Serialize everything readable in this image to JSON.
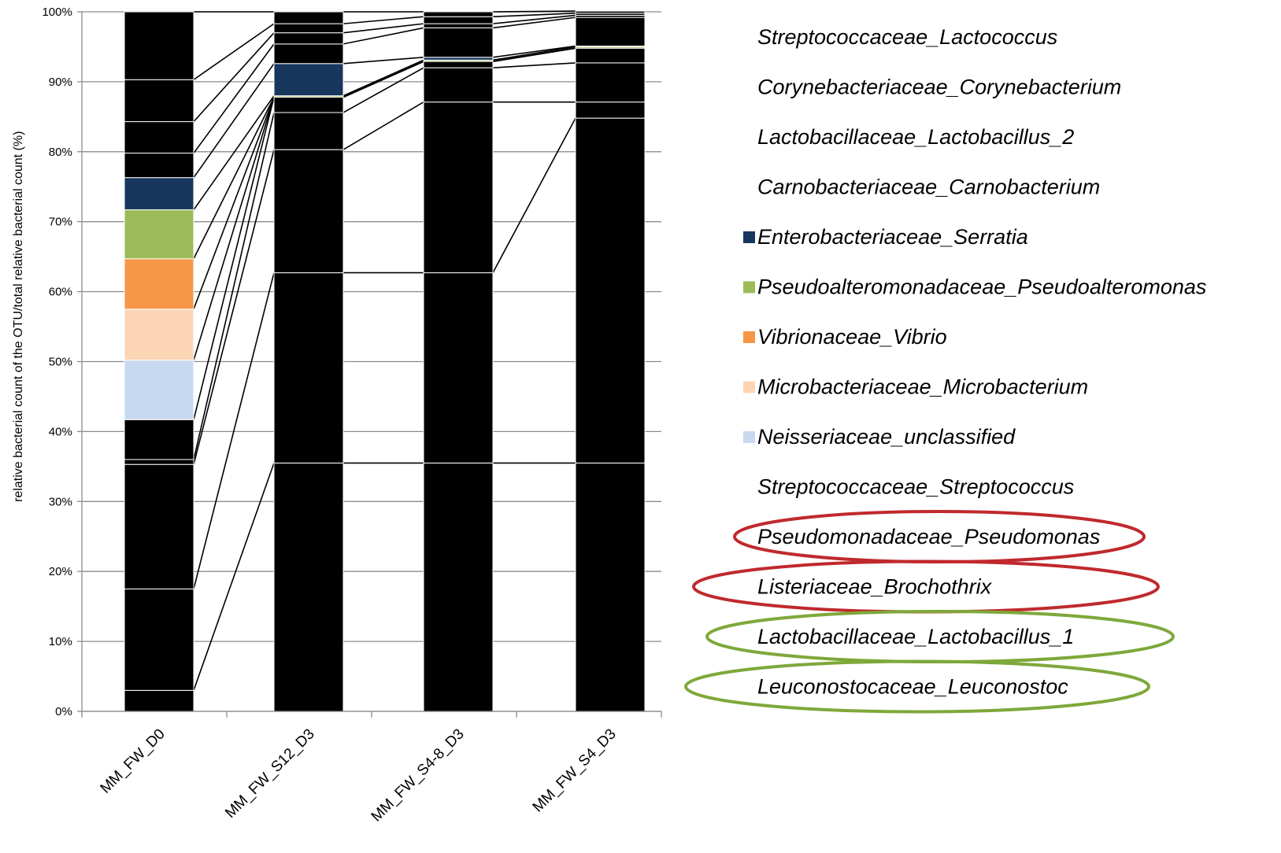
{
  "chart_data": {
    "type": "bar",
    "stacked": true,
    "percent": true,
    "ylabel": "relative bacterial count of the OTU/total relative bacterial count (%) ",
    "yticks": [
      "0% ",
      "10% ",
      "20% ",
      "30% ",
      "40% ",
      "50% ",
      "60% ",
      "70% ",
      "80% ",
      "90% ",
      "100% "
    ],
    "ylim": [
      0,
      100
    ],
    "grid": true,
    "legend_position": "right",
    "categories": [
      "MM_FW_D0 ",
      "MM_FW_S12_D3 ",
      "MM_FW_S4-8_D3 ",
      "MM_FW_S4_D3 "
    ],
    "series": [
      {
        "name": "Leuconostocaceae_Leuconostoc",
        "color": "#000000",
        "values": [
          3.0,
          35.5,
          35.5,
          35.5
        ]
      },
      {
        "name": "Lactobacillaceae_Lactobacillus_1",
        "color": "#000000",
        "values": [
          14.5,
          27.2,
          27.2,
          49.3
        ]
      },
      {
        "name": "Listeriaceae_Brochothrix",
        "color": "#000000",
        "values": [
          17.8,
          17.6,
          24.4,
          2.3
        ]
      },
      {
        "name": "Pseudomonadaceae_Pseudomonas",
        "color": "#000000",
        "values": [
          0.7,
          5.3,
          4.9,
          5.6
        ]
      },
      {
        "name": "Streptococcaceae_Streptococcus",
        "color": "#000000",
        "values": [
          5.7,
          2.2,
          0.9,
          2.1
        ]
      },
      {
        "name": "Neisseriaceae_unclassified",
        "color": "#c6d9f1",
        "values": [
          8.5,
          0.0,
          0.0,
          0.0
        ]
      },
      {
        "name": "Microbacteriaceae_Microbacterium",
        "color": "#fcd5b5",
        "values": [
          7.3,
          0.0,
          0.0,
          0.0
        ]
      },
      {
        "name": "Vibrionaceae_Vibrio",
        "color": "#f79646",
        "values": [
          7.2,
          0.0,
          0.0,
          0.0
        ]
      },
      {
        "name": "Pseudoalteromonadaceae_Pseudoalteromonas",
        "color": "#9bbb59",
        "values": [
          7.0,
          0.2,
          0.2,
          0.2
        ]
      },
      {
        "name": "Enterobacteriaceae_Serratia",
        "color": "#17375e",
        "values": [
          4.6,
          4.6,
          0.4,
          0.1
        ]
      },
      {
        "name": "Carnobacteriaceae_Carnobacterium",
        "color": "#000000",
        "values": [
          3.5,
          2.8,
          4.2,
          4.1
        ]
      },
      {
        "name": "Lactobacillaceae_Lactobacillus_2",
        "color": "#000000",
        "values": [
          4.5,
          1.6,
          0.6,
          0.3
        ]
      },
      {
        "name": "Corynebacteriaceae_Corynebacterium",
        "color": "#000000",
        "values": [
          6.0,
          1.3,
          1.0,
          0.3
        ]
      },
      {
        "name": "Streptococcaceae_Lactococcus",
        "color": "#000000",
        "values": [
          9.7,
          1.7,
          0.7,
          0.3
        ]
      }
    ],
    "highlighted_legend": [
      {
        "name": "Pseudomonadaceae_Pseudomonas",
        "color": "#c0292d"
      },
      {
        "name": "Listeriaceae_Brochothrix",
        "color": "#c0292d"
      },
      {
        "name": "Lactobacillaceae_Lactobacillus_1",
        "color": "#7ea83a"
      },
      {
        "name": "Leuconostocaceae_Leuconostoc",
        "color": "#7ea83a"
      }
    ]
  }
}
